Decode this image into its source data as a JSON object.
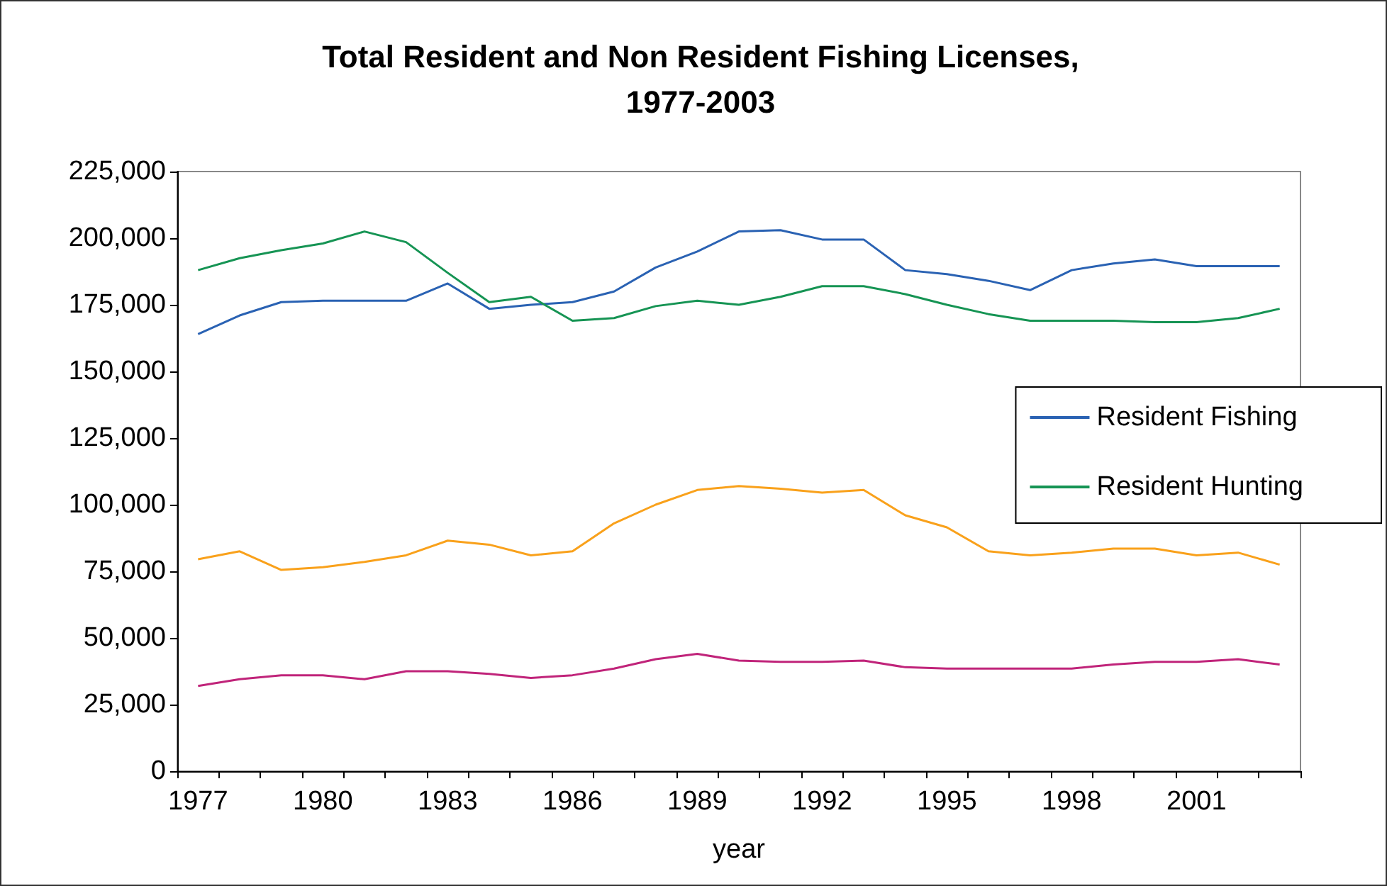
{
  "chart_data": {
    "type": "line",
    "title": "Total Resident and Non Resident Fishing Licenses,\n1977-2003",
    "xlabel": "year",
    "categories": [
      "1977",
      null,
      null,
      "1980",
      null,
      null,
      "1983",
      null,
      null,
      "1986",
      null,
      null,
      "1989",
      null,
      null,
      "1992",
      null,
      null,
      "1995",
      null,
      null,
      "1998",
      null,
      null,
      "2001",
      null,
      null
    ],
    "series": [
      {
        "name": "Resident Fishing",
        "color": "#2a62b3",
        "values": [
          164000,
          171000,
          176000,
          176500,
          176500,
          176500,
          183000,
          173500,
          175000,
          176000,
          180000,
          189000,
          195000,
          202500,
          203000,
          199500,
          199500,
          188000,
          186500,
          184000,
          180500,
          188000,
          190500,
          192000,
          189500,
          189500,
          189500
        ]
      },
      {
        "name": "Resident Hunting",
        "color": "#169454",
        "values": [
          188000,
          192500,
          195500,
          198000,
          202500,
          198500,
          187000,
          176000,
          178000,
          169000,
          170000,
          174500,
          176500,
          175000,
          178000,
          182000,
          182000,
          179000,
          175000,
          171500,
          169000,
          169000,
          169000,
          168500,
          168500,
          170000,
          173500
        ]
      },
      {
        "color": "#f9a11b",
        "values": [
          79500,
          82500,
          75500,
          76500,
          78500,
          81000,
          86500,
          85000,
          81000,
          82500,
          93000,
          100000,
          105500,
          107000,
          106000,
          104500,
          105500,
          96000,
          91500,
          82500,
          81000,
          82000,
          83500,
          83500,
          81000,
          82000,
          77500
        ]
      },
      {
        "color": "#c0247a",
        "values": [
          32000,
          34500,
          36000,
          36000,
          34500,
          37500,
          37500,
          36500,
          35000,
          36000,
          38500,
          42000,
          44000,
          41500,
          41000,
          41000,
          41500,
          39000,
          38500,
          38500,
          38500,
          38500,
          40000,
          41000,
          41000,
          42000,
          40000
        ]
      }
    ],
    "ylim": [
      0,
      225000
    ],
    "yticks": [
      0,
      {
        "value": 25000,
        "label": "25,000"
      },
      {
        "value": 50000,
        "label": "50,000"
      },
      {
        "value": 75000,
        "label": "75,000"
      },
      {
        "value": 100000,
        "label": "100,000"
      },
      {
        "value": 125000,
        "label": "125,000"
      },
      {
        "value": 150000,
        "label": "150,000"
      },
      {
        "value": 175000,
        "label": "175,000"
      },
      {
        "value": 200000,
        "label": "200,000"
      },
      {
        "value": 225000,
        "label": "225,000"
      }
    ],
    "grid": false,
    "legend": "right",
    "marker": "none",
    "line_style": "solid"
  }
}
